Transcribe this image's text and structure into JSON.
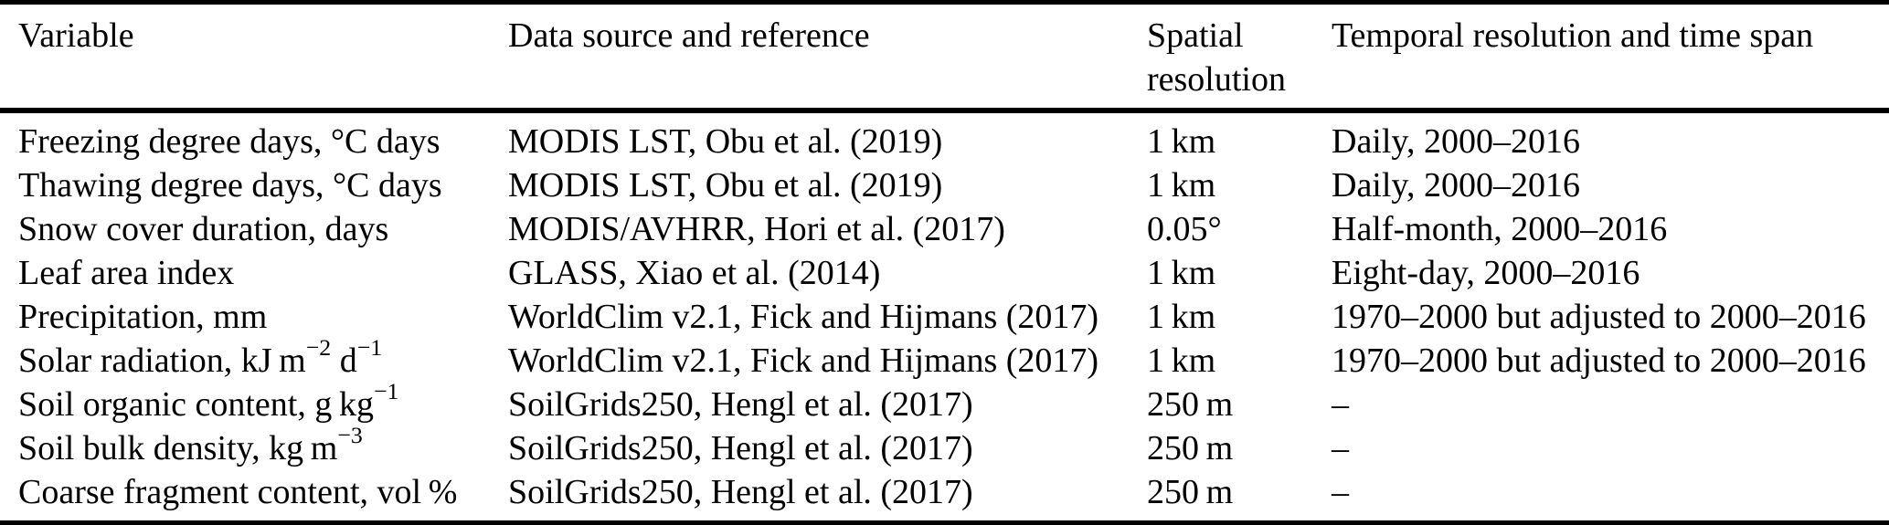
{
  "colors": {
    "text": "#000000",
    "background": "#ffffff",
    "rule": "#000000"
  },
  "table": {
    "columns": [
      "Variable",
      "Data source and reference",
      "Spatial resolution",
      "Temporal resolution and time span"
    ],
    "rows": [
      {
        "variable": "Freezing degree days, °C days",
        "source": "MODIS LST, Obu et al. (2019)",
        "spatial": "1 km",
        "temporal": "Daily, 2000–2016"
      },
      {
        "variable": "Thawing degree days, °C days",
        "source": "MODIS LST, Obu et al. (2019)",
        "spatial": "1 km",
        "temporal": "Daily, 2000–2016"
      },
      {
        "variable": "Snow cover duration, days",
        "source": "MODIS/AVHRR, Hori et al. (2017)",
        "spatial": "0.05°",
        "temporal": "Half-month, 2000–2016"
      },
      {
        "variable": "Leaf area index",
        "source": "GLASS, Xiao et al. (2014)",
        "spatial": "1 km",
        "temporal": "Eight-day, 2000–2016"
      },
      {
        "variable": "Precipitation, mm",
        "source": "WorldClim v2.1, Fick and Hijmans (2017)",
        "spatial": "1 km",
        "temporal": "1970–2000 but adjusted to 2000–2016"
      },
      {
        "variable": "Solar radiation, kJ m^{−2} d^{−1}",
        "source": "WorldClim v2.1, Fick and Hijmans (2017)",
        "spatial": "1 km",
        "temporal": "1970–2000 but adjusted to 2000–2016"
      },
      {
        "variable": "Soil organic content, g kg^{−1}",
        "source": "SoilGrids250, Hengl et al. (2017)",
        "spatial": "250 m",
        "temporal": "–"
      },
      {
        "variable": "Soil bulk density, kg m^{−3}",
        "source": "SoilGrids250, Hengl et al. (2017)",
        "spatial": "250 m",
        "temporal": "–"
      },
      {
        "variable": "Coarse fragment content, vol %",
        "source": "SoilGrids250, Hengl et al. (2017)",
        "spatial": "250 m",
        "temporal": "–"
      }
    ]
  }
}
